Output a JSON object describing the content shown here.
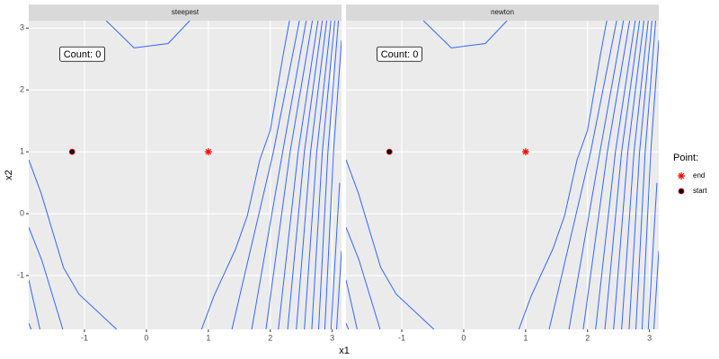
{
  "chart_data": {
    "type": "contour",
    "facets": [
      {
        "label": "steepest",
        "annotation": "Count: 0"
      },
      {
        "label": "newton",
        "annotation": "Count: 0"
      }
    ],
    "x_label": "x1",
    "y_label": "x2",
    "xlim": [
      -1.9,
      3.15
    ],
    "ylim": [
      -1.87,
      3.12
    ],
    "xticks": [
      -1,
      0,
      1,
      2,
      3
    ],
    "yticks": [
      -1,
      0,
      1,
      2,
      3
    ],
    "grid": true,
    "contour_color": "#3366ff",
    "contours": [
      {
        "x": [
          -0.65,
          -0.2,
          0.35,
          0.7
        ],
        "y": [
          3.12,
          2.68,
          2.75,
          3.12
        ]
      },
      {
        "x": [
          -1.9,
          -1.7,
          -1.34,
          -1.09,
          -0.48
        ],
        "y": [
          0.87,
          0.33,
          -0.87,
          -1.3,
          -1.87
        ]
      },
      {
        "x": [
          -1.9,
          -1.69,
          -1.35
        ],
        "y": [
          -0.22,
          -0.75,
          -1.87
        ]
      },
      {
        "x": [
          -1.9,
          -1.72
        ],
        "y": [
          -1.07,
          -1.87
        ]
      },
      {
        "x": [
          -1.9,
          -1.86
        ],
        "y": [
          -1.77,
          -1.87
        ]
      },
      {
        "x": [
          0.89,
          1.09,
          1.44,
          1.63,
          1.83,
          2.0,
          2.21,
          2.31
        ],
        "y": [
          -1.87,
          -1.33,
          -0.57,
          -0.03,
          0.87,
          1.35,
          2.58,
          3.12
        ]
      },
      {
        "x": [
          1.38,
          2.05,
          2.47
        ],
        "y": [
          -1.87,
          1,
          3.12
        ]
      },
      {
        "x": [
          1.7,
          2.2,
          2.58
        ],
        "y": [
          -1.87,
          1,
          3.12
        ]
      },
      {
        "x": [
          1.93,
          2.32,
          2.68
        ],
        "y": [
          -1.87,
          1,
          3.12
        ]
      },
      {
        "x": [
          2.13,
          2.45,
          2.77
        ],
        "y": [
          -1.87,
          1,
          3.12
        ]
      },
      {
        "x": [
          2.28,
          2.55,
          2.84
        ],
        "y": [
          -1.87,
          1,
          3.12
        ]
      },
      {
        "x": [
          2.42,
          2.65,
          2.91
        ],
        "y": [
          -1.87,
          1,
          3.12
        ]
      },
      {
        "x": [
          2.55,
          2.75,
          2.98
        ],
        "y": [
          -1.87,
          1,
          3.12
        ]
      },
      {
        "x": [
          2.67,
          2.84,
          3.04
        ],
        "y": [
          -1.87,
          1,
          3.12
        ]
      },
      {
        "x": [
          2.78,
          2.93,
          3.1
        ],
        "y": [
          -1.87,
          1,
          3.12
        ]
      },
      {
        "x": [
          2.88,
          3.02,
          3.15
        ],
        "y": [
          -1.87,
          1,
          2.8
        ]
      },
      {
        "x": [
          2.98,
          3.12
        ],
        "y": [
          -1.87,
          0.5
        ]
      },
      {
        "x": [
          3.07,
          3.15
        ],
        "y": [
          -1.87,
          -0.6
        ]
      }
    ],
    "legend_title": "Point:",
    "series": [
      {
        "name": "end",
        "color": "#ff0000",
        "shape": "asterisk",
        "x": [
          1
        ],
        "y": [
          1
        ]
      },
      {
        "name": "start",
        "color": "#ff0000",
        "shape": "circle",
        "x": [
          -1.2
        ],
        "y": [
          1
        ]
      }
    ]
  }
}
